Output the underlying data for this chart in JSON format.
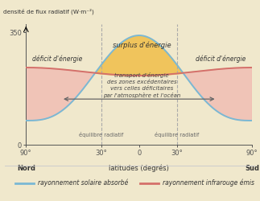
{
  "xlabel": "latitudes (degrés)",
  "ylabel_top": "densité de flux radiatif (W·m⁻²)",
  "xlim": [
    -90,
    90
  ],
  "ylim": [
    0,
    375
  ],
  "yticks": [
    0,
    350
  ],
  "xticks": [
    -90,
    -30,
    0,
    30,
    90
  ],
  "xticklabels": [
    "90°",
    "30°",
    "0",
    "30°",
    "90°"
  ],
  "nord_label": "Nord",
  "sud_label": "Sud",
  "solar_color": "#7ab8d4",
  "ir_color": "#d4706a",
  "surplus_fill_color": "#f0c050",
  "deficit_fill_color": "#f0b8b0",
  "bg_color": "#f0e8cc",
  "text_surplus": "surplus d'énergie",
  "text_deficit_left": "déficit d'énergie",
  "text_deficit_right": "déficit d'énergie",
  "text_transport_line1": "transport d'énergie",
  "text_transport_line2": "des zones excédentaires",
  "text_transport_line3": "vers celles déficitaires",
  "text_transport_line4": "par l'atmosphère et l'océan",
  "text_equilibre_left": "équilibre radiatif",
  "text_equilibre_right": "équilibre radiatif",
  "legend_solar": "rayonnement solaire absorbé",
  "legend_ir": "rayonnement infrarouge émis",
  "dashed_line_color": "#aaaaaa",
  "solar_peak": 340,
  "solar_pole": 75,
  "ir_equator": 215,
  "ir_pole": 240,
  "crossing_lat": 35
}
